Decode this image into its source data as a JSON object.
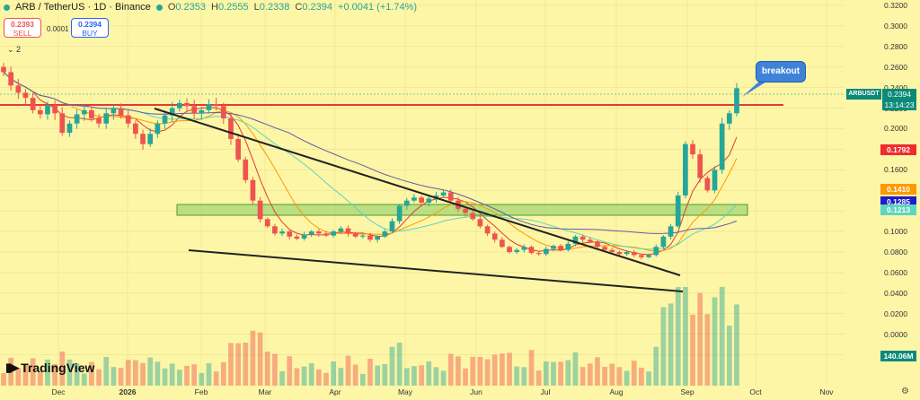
{
  "header": {
    "title": "ARB / TetherUS · 1D · Binance",
    "o_label": "O",
    "o_value": "0.2353",
    "h_label": "H",
    "h_value": "0.2555",
    "l_label": "L",
    "l_value": "0.2338",
    "c_label": "C",
    "c_value": "0.2394",
    "change": "+0.0041 (+1.74%)"
  },
  "trade": {
    "sell_price": "0.2393",
    "sell_label": "SELL",
    "buy_price": "0.2394",
    "buy_label": "BUY",
    "spread": "0.0001",
    "collapse": "⌄ 2"
  },
  "annotation": "breakout",
  "logo_text": "TradingView",
  "symbol_tag": "ARBUSDT",
  "last_price": "0.2394",
  "countdown": "13:14:23",
  "volume_tag": "140.06M",
  "colors": {
    "background": "#fdf6a6",
    "up": "#26a69a",
    "down": "#ef5350",
    "resistance": "#e53935",
    "zone": "#8fd16a",
    "trendline": "#222222",
    "ma_fast": "#e53935",
    "ma_mid": "#ff9800",
    "ma_slow": "#5cd6c0",
    "ma_long": "#5e5ca8"
  },
  "chart_data": {
    "type": "candlestick",
    "x_ticks": [
      "Dec",
      "2026",
      "Feb",
      "Mar",
      "Apr",
      "May",
      "Jun",
      "Jul",
      "Aug",
      "Sep",
      "Oct",
      "Nov"
    ],
    "y_ticks": [
      "0.3200",
      "0.3000",
      "0.2800",
      "0.2600",
      "0.2400",
      "0.2200",
      "0.2000",
      "0.1800",
      "0.1600",
      "0.1400",
      "0.1200",
      "0.1000",
      "0.0800",
      "0.0600",
      "0.0400",
      "0.0200",
      "0.0000",
      "-0.0200"
    ],
    "ylim": [
      -0.03,
      0.32
    ],
    "price_tags": [
      {
        "value": 0.1792,
        "label": "0.1792",
        "color": "#ef2b2b"
      },
      {
        "value": 0.141,
        "label": "0.1410",
        "color": "#ff9800"
      },
      {
        "value": 0.1285,
        "label": "0.1285",
        "color": "#1c1cc8"
      },
      {
        "value": 0.1213,
        "label": "0.1213",
        "color": "#5cd6c0"
      }
    ],
    "resistance_level": 0.228,
    "zone": [
      0.131,
      0.14
    ],
    "closes": [
      0.255,
      0.242,
      0.235,
      0.23,
      0.218,
      0.214,
      0.223,
      0.215,
      0.196,
      0.205,
      0.214,
      0.218,
      0.21,
      0.205,
      0.215,
      0.22,
      0.213,
      0.205,
      0.195,
      0.185,
      0.195,
      0.205,
      0.213,
      0.22,
      0.225,
      0.222,
      0.215,
      0.218,
      0.224,
      0.222,
      0.21,
      0.19,
      0.17,
      0.15,
      0.13,
      0.112,
      0.105,
      0.098,
      0.1,
      0.095,
      0.093,
      0.097,
      0.1,
      0.098,
      0.096,
      0.1,
      0.103,
      0.098,
      0.095,
      0.096,
      0.092,
      0.095,
      0.1,
      0.11,
      0.125,
      0.13,
      0.133,
      0.128,
      0.132,
      0.135,
      0.138,
      0.13,
      0.122,
      0.118,
      0.112,
      0.105,
      0.098,
      0.092,
      0.085,
      0.08,
      0.082,
      0.085,
      0.079,
      0.078,
      0.083,
      0.086,
      0.082,
      0.088,
      0.095,
      0.092,
      0.09,
      0.085,
      0.082,
      0.08,
      0.078,
      0.08,
      0.077,
      0.075,
      0.077,
      0.085,
      0.095,
      0.105,
      0.135,
      0.185,
      0.175,
      0.152,
      0.14,
      0.16,
      0.205,
      0.215,
      0.2394
    ]
  }
}
